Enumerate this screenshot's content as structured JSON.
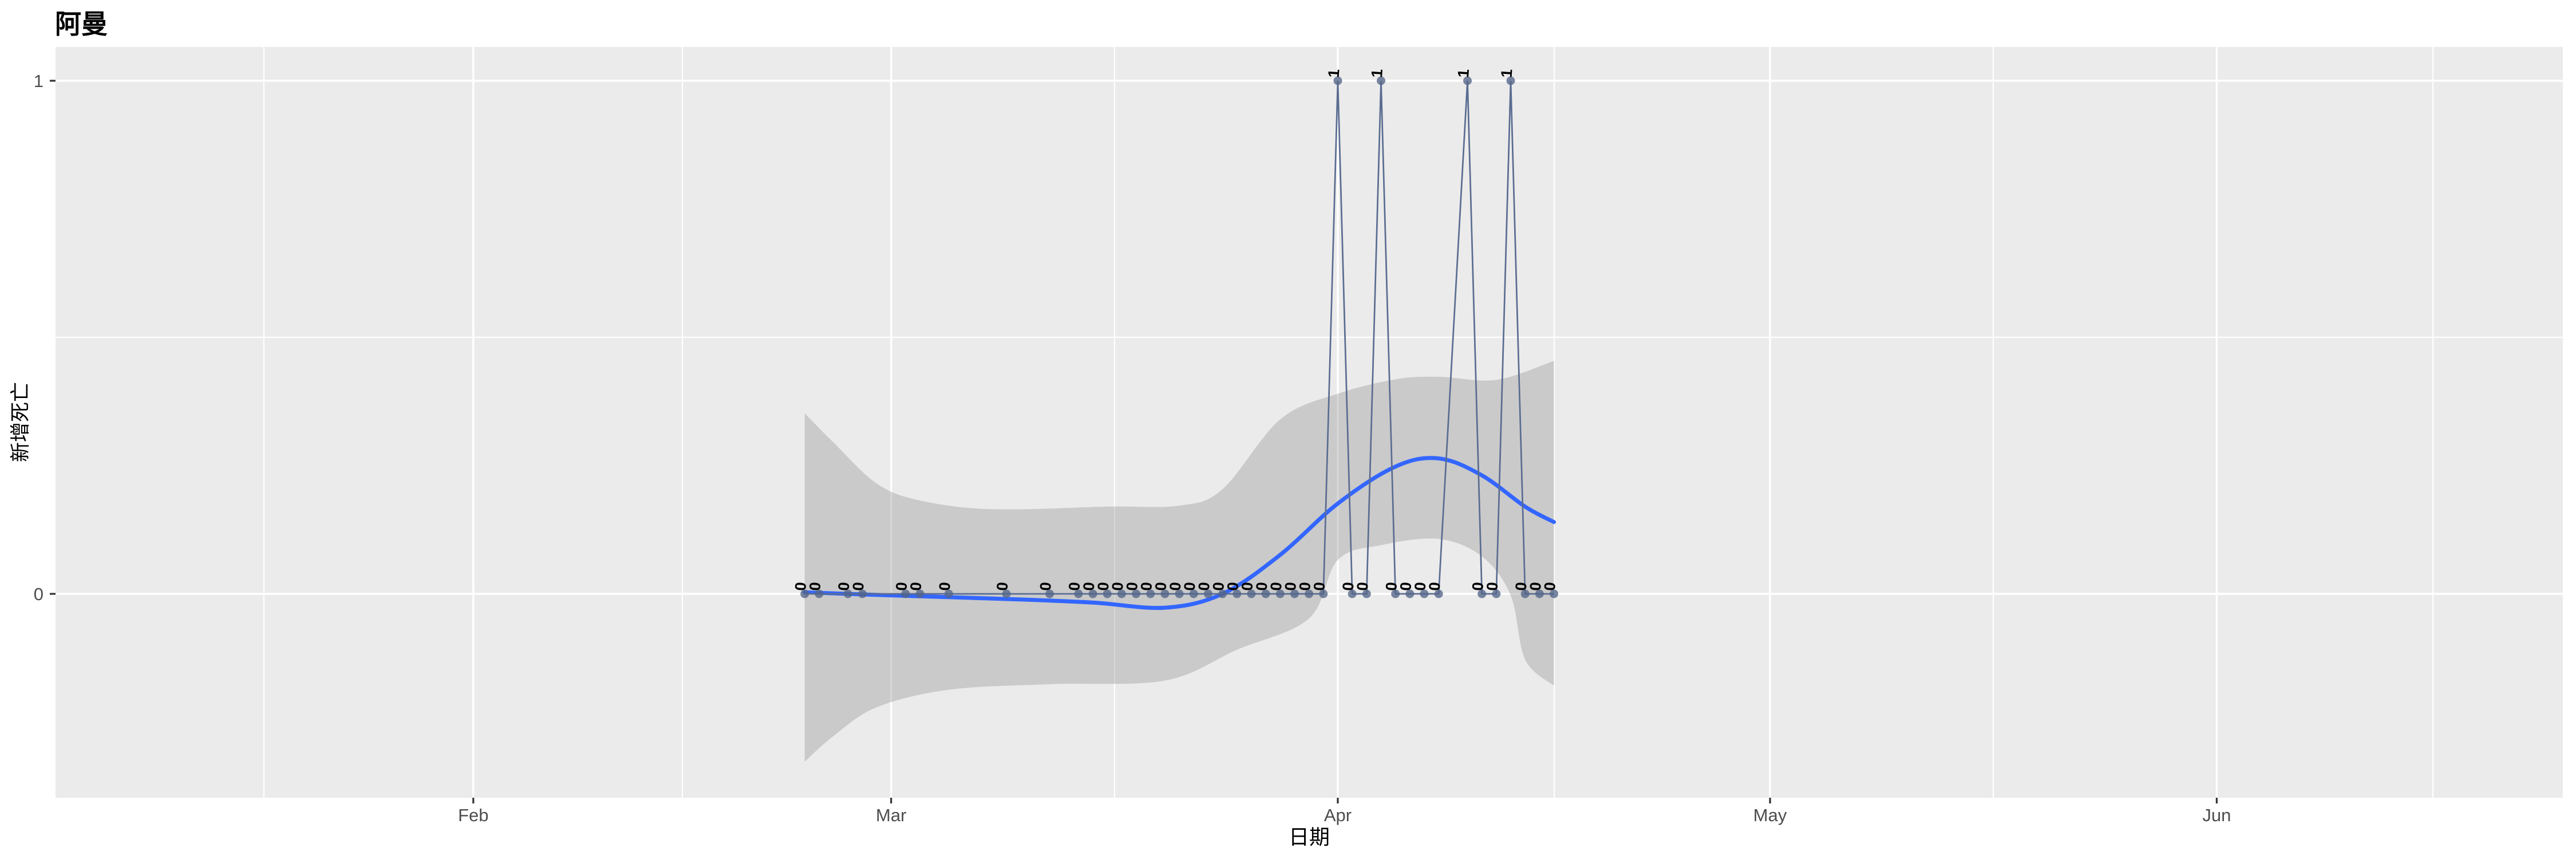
{
  "chart_data": {
    "type": "line",
    "title": "阿曼",
    "xlabel": "日期",
    "ylabel": "新增死亡",
    "ylim": [
      0,
      1
    ],
    "grid": true,
    "legend": "none",
    "x_ticks": [
      {
        "label": "Feb",
        "date": "2020-02-01"
      },
      {
        "label": "Mar",
        "date": "2020-03-01"
      },
      {
        "label": "Apr",
        "date": "2020-04-01"
      },
      {
        "label": "May",
        "date": "2020-05-01"
      },
      {
        "label": "Jun",
        "date": "2020-06-01"
      }
    ],
    "y_ticks": [
      {
        "label": "0",
        "value": 0
      },
      {
        "label": "1",
        "value": 1
      }
    ],
    "points": [
      {
        "date": "2020-02-24",
        "value": 0
      },
      {
        "date": "2020-02-25",
        "value": 0
      },
      {
        "date": "2020-02-27",
        "value": 0
      },
      {
        "date": "2020-02-28",
        "value": 0
      },
      {
        "date": "2020-03-02",
        "value": 0
      },
      {
        "date": "2020-03-03",
        "value": 0
      },
      {
        "date": "2020-03-05",
        "value": 0
      },
      {
        "date": "2020-03-09",
        "value": 0
      },
      {
        "date": "2020-03-12",
        "value": 0
      },
      {
        "date": "2020-03-14",
        "value": 0
      },
      {
        "date": "2020-03-15",
        "value": 0
      },
      {
        "date": "2020-03-16",
        "value": 0
      },
      {
        "date": "2020-03-17",
        "value": 0
      },
      {
        "date": "2020-03-18",
        "value": 0
      },
      {
        "date": "2020-03-19",
        "value": 0
      },
      {
        "date": "2020-03-20",
        "value": 0
      },
      {
        "date": "2020-03-21",
        "value": 0
      },
      {
        "date": "2020-03-22",
        "value": 0
      },
      {
        "date": "2020-03-23",
        "value": 0
      },
      {
        "date": "2020-03-24",
        "value": 0
      },
      {
        "date": "2020-03-25",
        "value": 0
      },
      {
        "date": "2020-03-26",
        "value": 0
      },
      {
        "date": "2020-03-27",
        "value": 0
      },
      {
        "date": "2020-03-28",
        "value": 0
      },
      {
        "date": "2020-03-29",
        "value": 0
      },
      {
        "date": "2020-03-30",
        "value": 0
      },
      {
        "date": "2020-03-31",
        "value": 0
      },
      {
        "date": "2020-04-01",
        "value": 1
      },
      {
        "date": "2020-04-02",
        "value": 0
      },
      {
        "date": "2020-04-03",
        "value": 0
      },
      {
        "date": "2020-04-04",
        "value": 1
      },
      {
        "date": "2020-04-05",
        "value": 0
      },
      {
        "date": "2020-04-06",
        "value": 0
      },
      {
        "date": "2020-04-07",
        "value": 0
      },
      {
        "date": "2020-04-08",
        "value": 0
      },
      {
        "date": "2020-04-10",
        "value": 1
      },
      {
        "date": "2020-04-11",
        "value": 0
      },
      {
        "date": "2020-04-12",
        "value": 0
      },
      {
        "date": "2020-04-13",
        "value": 1
      },
      {
        "date": "2020-04-14",
        "value": 0
      },
      {
        "date": "2020-04-15",
        "value": 0
      },
      {
        "date": "2020-04-16",
        "value": 0
      }
    ],
    "smooth_line": [
      {
        "date": "2020-02-24",
        "value": 0.003
      },
      {
        "date": "2020-03-01",
        "value": -0.003
      },
      {
        "date": "2020-03-09",
        "value": -0.01
      },
      {
        "date": "2020-03-15",
        "value": -0.017
      },
      {
        "date": "2020-03-20",
        "value": -0.027
      },
      {
        "date": "2020-03-24",
        "value": 0.0
      },
      {
        "date": "2020-03-28",
        "value": 0.076
      },
      {
        "date": "2020-04-01",
        "value": 0.176
      },
      {
        "date": "2020-04-05",
        "value": 0.248
      },
      {
        "date": "2020-04-08",
        "value": 0.264
      },
      {
        "date": "2020-04-11",
        "value": 0.231
      },
      {
        "date": "2020-04-14",
        "value": 0.17
      },
      {
        "date": "2020-04-16",
        "value": 0.14
      }
    ],
    "confidence_band": {
      "upper": [
        {
          "date": "2020-02-24",
          "value": 0.352
        },
        {
          "date": "2020-02-26",
          "value": 0.295
        },
        {
          "date": "2020-02-29",
          "value": 0.215
        },
        {
          "date": "2020-03-03",
          "value": 0.182
        },
        {
          "date": "2020-03-08",
          "value": 0.165
        },
        {
          "date": "2020-03-16",
          "value": 0.17
        },
        {
          "date": "2020-03-21",
          "value": 0.172
        },
        {
          "date": "2020-03-24",
          "value": 0.204
        },
        {
          "date": "2020-03-28",
          "value": 0.34
        },
        {
          "date": "2020-04-01",
          "value": 0.39
        },
        {
          "date": "2020-04-05",
          "value": 0.418
        },
        {
          "date": "2020-04-08",
          "value": 0.423
        },
        {
          "date": "2020-04-12",
          "value": 0.417
        },
        {
          "date": "2020-04-16",
          "value": 0.454
        }
      ],
      "lower": [
        {
          "date": "2020-02-24",
          "value": -0.327
        },
        {
          "date": "2020-02-26",
          "value": -0.277
        },
        {
          "date": "2020-02-29",
          "value": -0.221
        },
        {
          "date": "2020-03-05",
          "value": -0.187
        },
        {
          "date": "2020-03-12",
          "value": -0.176
        },
        {
          "date": "2020-03-20",
          "value": -0.169
        },
        {
          "date": "2020-03-25",
          "value": -0.109
        },
        {
          "date": "2020-03-30",
          "value": -0.048
        },
        {
          "date": "2020-04-01",
          "value": 0.066
        },
        {
          "date": "2020-04-04",
          "value": 0.095
        },
        {
          "date": "2020-04-08",
          "value": 0.107
        },
        {
          "date": "2020-04-11",
          "value": 0.073
        },
        {
          "date": "2020-04-13",
          "value": -0.003
        },
        {
          "date": "2020-04-14",
          "value": -0.128
        },
        {
          "date": "2020-04-16",
          "value": -0.179
        }
      ]
    },
    "colors": {
      "panel_background": "#EBEBEB",
      "gridline": "#FFFFFF",
      "smooth_line": "#3366FF",
      "band_fill": "rgba(153,153,153,0.4)",
      "data_line": "#5A6C91",
      "point_fill": "rgba(82,100,136,0.78)",
      "point_label": "#000000",
      "tick_mark": "#333333",
      "tick_text": "#4D4D4D"
    }
  }
}
